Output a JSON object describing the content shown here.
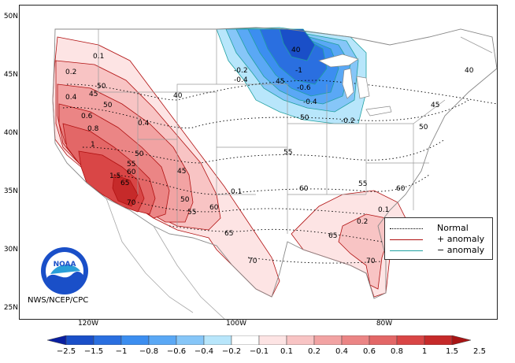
{
  "map": {
    "lat_labels": [
      "50N",
      "45N",
      "40N",
      "35N",
      "30N",
      "25N"
    ],
    "lon_labels": [
      "120W",
      "100W",
      "80W"
    ],
    "normal_contours": [
      "40",
      "45",
      "50",
      "55",
      "60",
      "65",
      "70"
    ],
    "anomaly_labels_positive": [
      "0.1",
      "0.2",
      "0.4",
      "0.6",
      "0.8",
      "1",
      "1.5"
    ],
    "anomaly_labels_negative": [
      "-0.2",
      "-0.4",
      "-0.6",
      "-1"
    ]
  },
  "legend": {
    "normal_label": "Normal",
    "plus_label": "+ anomaly",
    "minus_label": "− anomaly",
    "normal_color": "#000000",
    "plus_color": "#b01010",
    "minus_color": "#20a0a0"
  },
  "agency": "NWS/NCEP/CPC",
  "logo_text": "NOAA",
  "colorbar": {
    "labels": [
      "−2.5",
      "−1.5",
      "−1",
      "−0.8",
      "−0.6",
      "−0.4",
      "−0.2",
      "−0.1",
      "0.1",
      "0.2",
      "0.4",
      "0.6",
      "0.8",
      "1",
      "1.5",
      "2.5"
    ],
    "colors": [
      "#0a1fa0",
      "#1a4fc8",
      "#2a6fe0",
      "#3c8ef0",
      "#5aa8f5",
      "#86c6f8",
      "#b8e6fb",
      "#ffffff",
      "#fde4e4",
      "#f8c4c4",
      "#f2a3a3",
      "#eb8585",
      "#e36767",
      "#d94646",
      "#c62a2a",
      "#a81414"
    ]
  }
}
